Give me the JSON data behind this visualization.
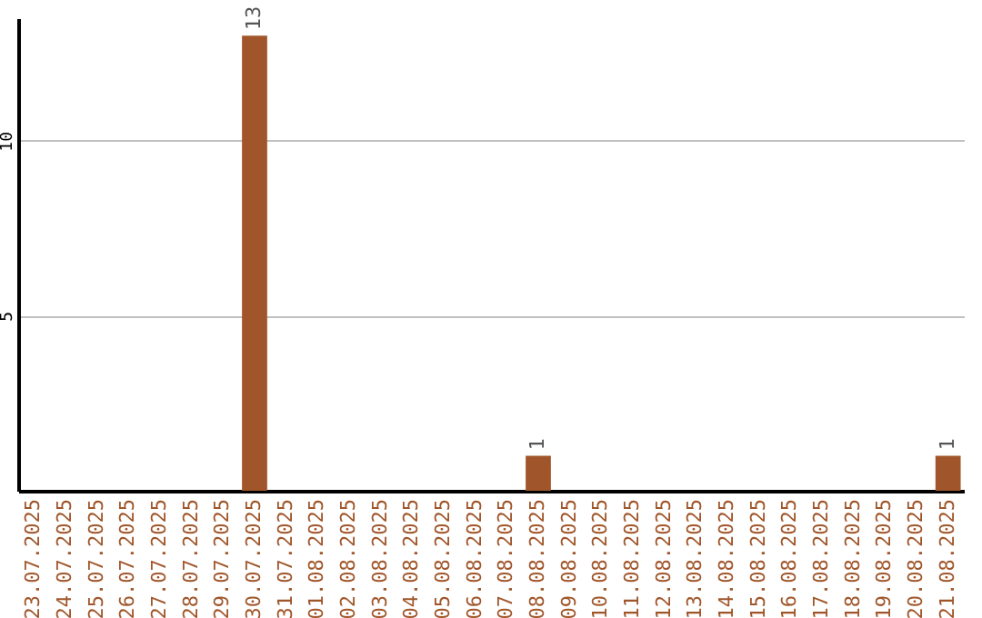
{
  "chart_data": {
    "type": "bar",
    "categories": [
      "23.07.2025",
      "24.07.2025",
      "25.07.2025",
      "26.07.2025",
      "27.07.2025",
      "28.07.2025",
      "29.07.2025",
      "30.07.2025",
      "31.07.2025",
      "01.08.2025",
      "02.08.2025",
      "03.08.2025",
      "04.08.2025",
      "05.08.2025",
      "06.08.2025",
      "07.08.2025",
      "08.08.2025",
      "09.08.2025",
      "10.08.2025",
      "11.08.2025",
      "12.08.2025",
      "13.08.2025",
      "14.08.2025",
      "15.08.2025",
      "16.08.2025",
      "17.08.2025",
      "18.08.2025",
      "19.08.2025",
      "20.08.2025",
      "21.08.2025"
    ],
    "values": [
      0,
      0,
      0,
      0,
      0,
      0,
      0,
      13,
      0,
      0,
      0,
      0,
      0,
      0,
      0,
      0,
      1,
      0,
      0,
      0,
      0,
      0,
      0,
      0,
      0,
      0,
      0,
      0,
      0,
      1
    ],
    "value_labels": [
      null,
      null,
      null,
      null,
      null,
      null,
      null,
      "13",
      null,
      null,
      null,
      null,
      null,
      null,
      null,
      null,
      "1",
      null,
      null,
      null,
      null,
      null,
      null,
      null,
      null,
      null,
      null,
      null,
      null,
      "1"
    ],
    "color": "#a0562a",
    "ylim": [
      0,
      13.5
    ],
    "yticks": [
      5,
      10
    ],
    "grid": "y"
  }
}
